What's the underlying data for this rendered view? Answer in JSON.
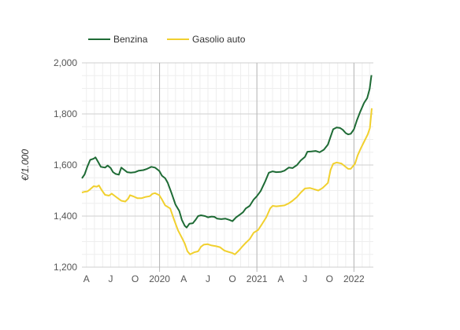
{
  "chart_data": {
    "type": "line",
    "ylabel": "€/1.000",
    "ylim": [
      1200,
      2000
    ],
    "yticks": [
      "1,200",
      "1,400",
      "1,600",
      "1,800",
      "2,000"
    ],
    "ytick_values": [
      1200,
      1400,
      1600,
      1800,
      2000
    ],
    "xlim": [
      "2019-03-15",
      "2022-03-15"
    ],
    "xticks": [
      {
        "date": "2019-04-01",
        "label": "A"
      },
      {
        "date": "2019-07-01",
        "label": "J"
      },
      {
        "date": "2019-10-01",
        "label": "O"
      },
      {
        "date": "2020-01-01",
        "label": "2020"
      },
      {
        "date": "2020-04-01",
        "label": "A"
      },
      {
        "date": "2020-07-01",
        "label": "J"
      },
      {
        "date": "2020-10-01",
        "label": "O"
      },
      {
        "date": "2021-01-01",
        "label": "2021"
      },
      {
        "date": "2021-04-01",
        "label": "A"
      },
      {
        "date": "2021-07-01",
        "label": "J"
      },
      {
        "date": "2021-10-01",
        "label": "O"
      },
      {
        "date": "2022-01-01",
        "label": "2022"
      }
    ],
    "year_gridlines": [
      "2020-01-01",
      "2021-01-01",
      "2022-01-01"
    ],
    "grid": true,
    "legend_position": "top-left",
    "series": [
      {
        "name": "Benzina",
        "color": "#1e6b35",
        "points": [
          [
            "2019-03-15",
            1548
          ],
          [
            "2019-03-25",
            1563
          ],
          [
            "2019-04-05",
            1595
          ],
          [
            "2019-04-15",
            1620
          ],
          [
            "2019-04-28",
            1625
          ],
          [
            "2019-05-05",
            1630
          ],
          [
            "2019-05-15",
            1612
          ],
          [
            "2019-05-25",
            1593
          ],
          [
            "2019-06-10",
            1590
          ],
          [
            "2019-06-20",
            1598
          ],
          [
            "2019-07-01",
            1588
          ],
          [
            "2019-07-10",
            1572
          ],
          [
            "2019-07-20",
            1565
          ],
          [
            "2019-08-01",
            1562
          ],
          [
            "2019-08-10",
            1590
          ],
          [
            "2019-08-20",
            1582
          ],
          [
            "2019-09-01",
            1572
          ],
          [
            "2019-09-15",
            1570
          ],
          [
            "2019-10-01",
            1572
          ],
          [
            "2019-10-15",
            1578
          ],
          [
            "2019-11-01",
            1580
          ],
          [
            "2019-11-15",
            1585
          ],
          [
            "2019-12-01",
            1593
          ],
          [
            "2019-12-15",
            1590
          ],
          [
            "2019-12-31",
            1577
          ],
          [
            "2020-01-10",
            1558
          ],
          [
            "2020-01-22",
            1548
          ],
          [
            "2020-02-01",
            1530
          ],
          [
            "2020-02-15",
            1490
          ],
          [
            "2020-03-01",
            1445
          ],
          [
            "2020-03-15",
            1420
          ],
          [
            "2020-03-25",
            1385
          ],
          [
            "2020-04-05",
            1362
          ],
          [
            "2020-04-12",
            1355
          ],
          [
            "2020-04-22",
            1370
          ],
          [
            "2020-05-05",
            1372
          ],
          [
            "2020-05-15",
            1385
          ],
          [
            "2020-05-25",
            1400
          ],
          [
            "2020-06-05",
            1403
          ],
          [
            "2020-06-20",
            1400
          ],
          [
            "2020-07-01",
            1395
          ],
          [
            "2020-07-15",
            1398
          ],
          [
            "2020-07-25",
            1397
          ],
          [
            "2020-08-05",
            1390
          ],
          [
            "2020-08-20",
            1388
          ],
          [
            "2020-09-05",
            1390
          ],
          [
            "2020-09-20",
            1385
          ],
          [
            "2020-10-01",
            1380
          ],
          [
            "2020-10-15",
            1395
          ],
          [
            "2020-10-28",
            1405
          ],
          [
            "2020-11-10",
            1415
          ],
          [
            "2020-11-20",
            1430
          ],
          [
            "2020-12-05",
            1440
          ],
          [
            "2020-12-20",
            1465
          ],
          [
            "2021-01-01",
            1478
          ],
          [
            "2021-01-15",
            1498
          ],
          [
            "2021-02-01",
            1535
          ],
          [
            "2021-02-15",
            1570
          ],
          [
            "2021-03-01",
            1575
          ],
          [
            "2021-03-15",
            1572
          ],
          [
            "2021-04-01",
            1573
          ],
          [
            "2021-04-15",
            1578
          ],
          [
            "2021-05-01",
            1590
          ],
          [
            "2021-05-15",
            1588
          ],
          [
            "2021-06-01",
            1600
          ],
          [
            "2021-06-15",
            1618
          ],
          [
            "2021-07-01",
            1632
          ],
          [
            "2021-07-10",
            1652
          ],
          [
            "2021-07-25",
            1653
          ],
          [
            "2021-08-10",
            1655
          ],
          [
            "2021-08-25",
            1650
          ],
          [
            "2021-09-10",
            1660
          ],
          [
            "2021-09-25",
            1680
          ],
          [
            "2021-10-05",
            1710
          ],
          [
            "2021-10-15",
            1740
          ],
          [
            "2021-10-28",
            1747
          ],
          [
            "2021-11-10",
            1745
          ],
          [
            "2021-11-20",
            1738
          ],
          [
            "2021-12-01",
            1725
          ],
          [
            "2021-12-10",
            1720
          ],
          [
            "2021-12-20",
            1722
          ],
          [
            "2022-01-01",
            1740
          ],
          [
            "2022-01-12",
            1775
          ],
          [
            "2022-01-25",
            1810
          ],
          [
            "2022-02-08",
            1843
          ],
          [
            "2022-02-20",
            1862
          ],
          [
            "2022-03-01",
            1898
          ],
          [
            "2022-03-08",
            1952
          ]
        ]
      },
      {
        "name": "Gasolio auto",
        "color": "#f1d02e",
        "points": [
          [
            "2019-03-15",
            1492
          ],
          [
            "2019-03-25",
            1495
          ],
          [
            "2019-04-05",
            1497
          ],
          [
            "2019-04-15",
            1505
          ],
          [
            "2019-04-28",
            1517
          ],
          [
            "2019-05-10",
            1515
          ],
          [
            "2019-05-18",
            1520
          ],
          [
            "2019-05-28",
            1502
          ],
          [
            "2019-06-10",
            1483
          ],
          [
            "2019-06-25",
            1480
          ],
          [
            "2019-07-05",
            1488
          ],
          [
            "2019-07-15",
            1480
          ],
          [
            "2019-07-28",
            1470
          ],
          [
            "2019-08-10",
            1460
          ],
          [
            "2019-08-25",
            1457
          ],
          [
            "2019-09-05",
            1468
          ],
          [
            "2019-09-12",
            1482
          ],
          [
            "2019-09-25",
            1477
          ],
          [
            "2019-10-10",
            1470
          ],
          [
            "2019-10-25",
            1470
          ],
          [
            "2019-11-10",
            1475
          ],
          [
            "2019-11-25",
            1478
          ],
          [
            "2019-12-05",
            1487
          ],
          [
            "2019-12-15",
            1490
          ],
          [
            "2019-12-31",
            1482
          ],
          [
            "2020-01-10",
            1465
          ],
          [
            "2020-01-22",
            1442
          ],
          [
            "2020-02-10",
            1430
          ],
          [
            "2020-02-25",
            1385
          ],
          [
            "2020-03-10",
            1345
          ],
          [
            "2020-03-25",
            1315
          ],
          [
            "2020-04-05",
            1292
          ],
          [
            "2020-04-15",
            1262
          ],
          [
            "2020-04-25",
            1250
          ],
          [
            "2020-05-10",
            1258
          ],
          [
            "2020-05-25",
            1262
          ],
          [
            "2020-06-05",
            1280
          ],
          [
            "2020-06-15",
            1288
          ],
          [
            "2020-06-30",
            1290
          ],
          [
            "2020-07-15",
            1285
          ],
          [
            "2020-08-01",
            1282
          ],
          [
            "2020-08-15",
            1278
          ],
          [
            "2020-09-01",
            1265
          ],
          [
            "2020-09-15",
            1260
          ],
          [
            "2020-10-01",
            1255
          ],
          [
            "2020-10-10",
            1250
          ],
          [
            "2020-10-25",
            1265
          ],
          [
            "2020-11-05",
            1278
          ],
          [
            "2020-11-20",
            1295
          ],
          [
            "2020-12-05",
            1310
          ],
          [
            "2020-12-20",
            1335
          ],
          [
            "2021-01-05",
            1345
          ],
          [
            "2021-01-20",
            1368
          ],
          [
            "2021-02-05",
            1395
          ],
          [
            "2021-02-20",
            1430
          ],
          [
            "2021-03-01",
            1440
          ],
          [
            "2021-03-15",
            1438
          ],
          [
            "2021-04-01",
            1440
          ],
          [
            "2021-04-15",
            1442
          ],
          [
            "2021-05-01",
            1450
          ],
          [
            "2021-05-15",
            1460
          ],
          [
            "2021-06-01",
            1475
          ],
          [
            "2021-06-15",
            1492
          ],
          [
            "2021-07-01",
            1508
          ],
          [
            "2021-07-20",
            1510
          ],
          [
            "2021-08-05",
            1505
          ],
          [
            "2021-08-20",
            1500
          ],
          [
            "2021-09-05",
            1510
          ],
          [
            "2021-09-25",
            1530
          ],
          [
            "2021-10-05",
            1580
          ],
          [
            "2021-10-15",
            1605
          ],
          [
            "2021-10-28",
            1610
          ],
          [
            "2021-11-15",
            1606
          ],
          [
            "2021-11-28",
            1595
          ],
          [
            "2021-12-10",
            1585
          ],
          [
            "2021-12-20",
            1585
          ],
          [
            "2022-01-05",
            1605
          ],
          [
            "2022-01-15",
            1638
          ],
          [
            "2022-01-28",
            1668
          ],
          [
            "2022-02-10",
            1695
          ],
          [
            "2022-02-22",
            1720
          ],
          [
            "2022-03-02",
            1745
          ],
          [
            "2022-03-09",
            1822
          ]
        ]
      }
    ]
  }
}
